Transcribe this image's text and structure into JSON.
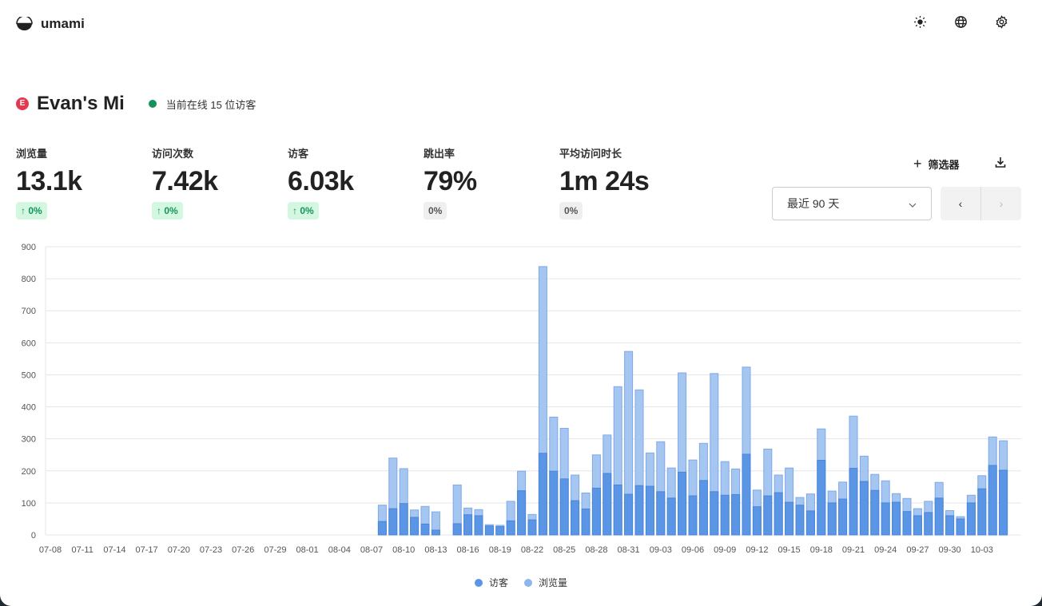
{
  "app": {
    "name": "umami"
  },
  "header": {
    "icons": [
      "sun-icon",
      "globe-icon",
      "gear-icon"
    ]
  },
  "site": {
    "name": "Evan's Mi",
    "favicon_letter": "E",
    "online": "当前在线 15 位访客",
    "online_color": "#15945a"
  },
  "metrics": [
    {
      "label": "浏览量",
      "value": "13.1k",
      "change": "↑ 0%",
      "trend": "up"
    },
    {
      "label": "访问次数",
      "value": "7.42k",
      "change": "↑ 0%",
      "trend": "up"
    },
    {
      "label": "访客",
      "value": "6.03k",
      "change": "↑ 0%",
      "trend": "up"
    },
    {
      "label": "跳出率",
      "value": "79%",
      "change": "0%",
      "trend": "flat"
    },
    {
      "label": "平均访问时长",
      "value": "1m 24s",
      "change": "0%",
      "trend": "flat"
    }
  ],
  "toolbar": {
    "filter_label": "筛选器",
    "date_range": "最近 90 天",
    "prev": "‹",
    "next": "›"
  },
  "chart_data": {
    "type": "bar",
    "start": "07-08",
    "tick_labels": [
      "07-08",
      "07-11",
      "07-14",
      "07-17",
      "07-20",
      "07-23",
      "07-26",
      "07-29",
      "08-01",
      "08-04",
      "08-07",
      "08-10",
      "08-13",
      "08-16",
      "08-19",
      "08-22",
      "08-25",
      "08-28",
      "08-31",
      "09-03",
      "09-06",
      "09-09",
      "09-12",
      "09-15",
      "09-18",
      "09-21",
      "09-24",
      "09-27",
      "09-30",
      "10-03"
    ],
    "y_ticks": [
      0,
      100,
      200,
      300,
      400,
      500,
      600,
      700,
      800,
      900
    ],
    "ylim": [
      0,
      900
    ],
    "grid": true,
    "legend_position": "bottom",
    "series": [
      {
        "name": "访客",
        "color": "#5b95e6",
        "values": [
          0,
          0,
          0,
          0,
          0,
          0,
          0,
          0,
          0,
          0,
          0,
          0,
          0,
          0,
          0,
          0,
          0,
          0,
          0,
          0,
          0,
          0,
          0,
          0,
          0,
          0,
          0,
          0,
          0,
          0,
          0,
          42,
          82,
          98,
          55,
          34,
          15,
          0,
          35,
          63,
          60,
          28,
          26,
          44,
          138,
          47,
          255,
          199,
          175,
          107,
          81,
          146,
          192,
          156,
          127,
          154,
          152,
          135,
          115,
          196,
          122,
          170,
          135,
          124,
          126,
          252,
          88,
          122,
          132,
          102,
          93,
          75,
          233,
          100,
          112,
          208,
          167,
          139,
          100,
          102,
          73,
          60,
          70,
          115,
          60,
          50,
          100,
          144,
          217,
          202
        ]
      },
      {
        "name": "浏览量",
        "color": "#a6c6f2",
        "values": [
          0,
          0,
          0,
          0,
          0,
          0,
          0,
          0,
          0,
          0,
          0,
          0,
          0,
          0,
          0,
          0,
          0,
          0,
          0,
          0,
          0,
          0,
          0,
          0,
          0,
          0,
          0,
          0,
          0,
          0,
          0,
          93,
          240,
          207,
          78,
          89,
          72,
          0,
          156,
          84,
          79,
          32,
          30,
          105,
          199,
          64,
          838,
          368,
          333,
          187,
          131,
          250,
          312,
          463,
          573,
          453,
          256,
          291,
          209,
          506,
          234,
          286,
          504,
          229,
          206,
          524,
          140,
          268,
          187,
          209,
          117,
          128,
          331,
          137,
          165,
          371,
          246,
          189,
          169,
          129,
          114,
          82,
          105,
          164,
          76,
          57,
          124,
          185,
          306,
          294
        ]
      }
    ]
  }
}
